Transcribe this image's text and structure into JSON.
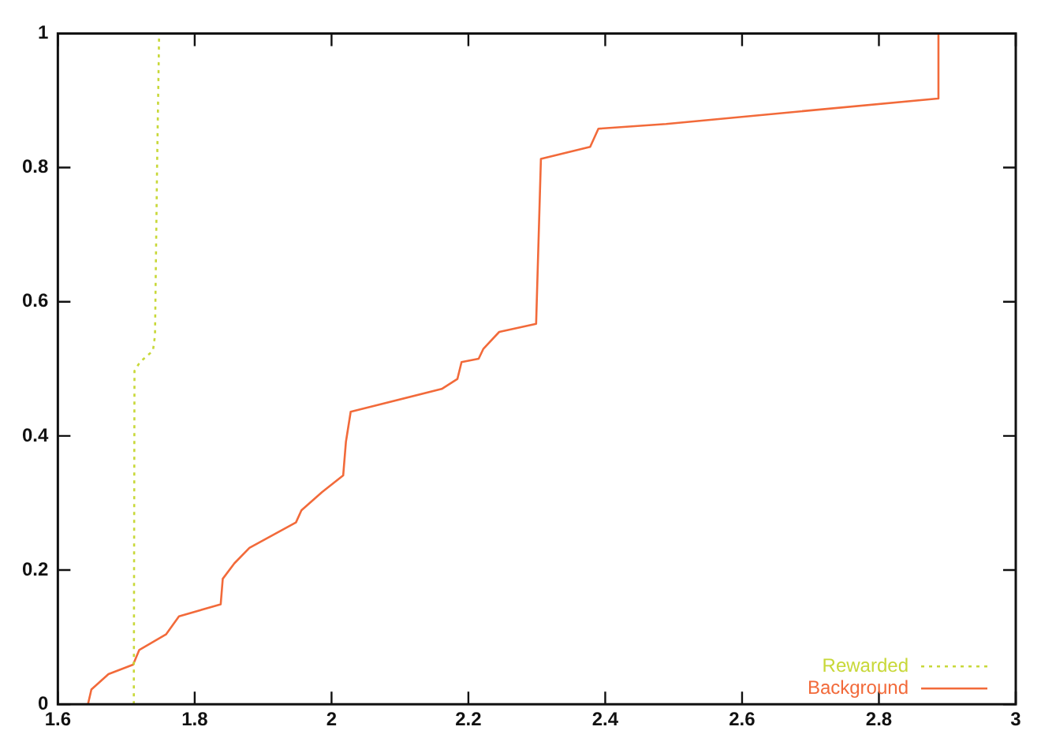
{
  "chart_data": {
    "type": "line",
    "series": [
      {
        "name": "Rewarded",
        "color": "#c8d838",
        "line_style": "dotted",
        "x": [
          1.711,
          1.712,
          1.72,
          1.739,
          1.742,
          1.745,
          1.748
        ],
        "values": [
          0,
          0.497,
          0.51,
          0.527,
          0.55,
          0.8,
          1
        ]
      },
      {
        "name": "Background",
        "color": "#f26a3a",
        "line_style": "solid",
        "x": [
          1.644,
          1.649,
          1.674,
          1.71,
          1.719,
          1.758,
          1.777,
          1.838,
          1.841,
          1.858,
          1.88,
          1.948,
          1.956,
          1.986,
          2.017,
          2.021,
          2.028,
          2.161,
          2.184,
          2.19,
          2.215,
          2.222,
          2.245,
          2.299,
          2.306,
          2.378,
          2.39,
          2.489,
          2.886,
          2.887
        ],
        "values": [
          0,
          0.022,
          0.045,
          0.059,
          0.081,
          0.104,
          0.131,
          0.149,
          0.187,
          0.21,
          0.233,
          0.271,
          0.289,
          0.316,
          0.341,
          0.391,
          0.436,
          0.47,
          0.485,
          0.51,
          0.515,
          0.53,
          0.555,
          0.567,
          0.813,
          0.831,
          0.858,
          0.865,
          0.903,
          1
        ]
      }
    ],
    "xlim": [
      1.6,
      3
    ],
    "xticks": [
      1.6,
      1.8,
      2,
      2.2,
      2.4,
      2.6,
      2.8,
      3
    ],
    "ylim": [
      0,
      1
    ],
    "yticks": [
      0,
      0.2,
      0.4,
      0.6,
      0.8,
      1
    ],
    "grid": false,
    "legend": "bottom right",
    "marker": "none"
  }
}
